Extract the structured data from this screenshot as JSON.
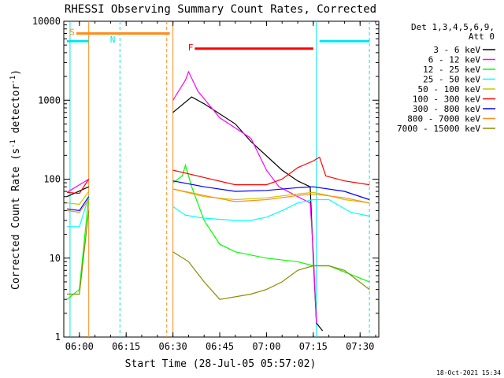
{
  "chart_data": {
    "type": "line",
    "title": "RHESSI Observing Summary Count Rates, Corrected",
    "xlabel": "Start Time (28-Jul-05 05:57:02)",
    "ylabel": "Corrected Count Rate (s⁻¹ detector⁻¹)",
    "ylabel_main": "Corrected Count Rate (s",
    "ylabel_sup1": "-1",
    "ylabel_mid": " detector",
    "ylabel_sup2": "-1",
    "ylabel_end": ")",
    "xlim": [
      "05:55:00",
      "07:36:00"
    ],
    "ylim": [
      1,
      10000
    ],
    "yscale": "log",
    "x_ticks": [
      {
        "t": "06:00",
        "label": "06:00"
      },
      {
        "t": "06:15",
        "label": "06:15"
      },
      {
        "t": "06:30",
        "label": "06:30"
      },
      {
        "t": "06:45",
        "label": "06:45"
      },
      {
        "t": "07:00",
        "label": "07:00"
      },
      {
        "t": "07:15",
        "label": "07:15"
      },
      {
        "t": "07:30",
        "label": "07:30"
      }
    ],
    "y_ticks": [
      {
        "v": 1,
        "label": "1"
      },
      {
        "v": 10,
        "label": "10"
      },
      {
        "v": 100,
        "label": "100"
      },
      {
        "v": 1000,
        "label": "1000"
      },
      {
        "v": 10000,
        "label": "10000"
      }
    ],
    "legend": {
      "position": "right",
      "header": [
        "Det 1,3,4,5,6,9,",
        "Att 0"
      ]
    },
    "series": [
      {
        "name": "3 - 6 keV",
        "color": "#000000",
        "gaps": [
          [
            "06:03",
            "06:30"
          ]
        ],
        "points": [
          [
            "05:56",
            60
          ],
          [
            "06:03",
            80
          ],
          [
            "06:30",
            700
          ],
          [
            "06:36",
            1100
          ],
          [
            "06:40",
            900
          ],
          [
            "06:50",
            500
          ],
          [
            "06:55",
            300
          ],
          [
            "07:05",
            130
          ],
          [
            "07:10",
            95
          ],
          [
            "07:14",
            80
          ],
          [
            "07:15",
            10
          ],
          [
            "07:16",
            1.5
          ],
          [
            "07:18",
            1.2
          ]
        ]
      },
      {
        "name": "6 - 12 keV",
        "color": "#ff00ff",
        "gaps": [
          [
            "06:03",
            "06:30"
          ]
        ],
        "points": [
          [
            "05:56",
            68
          ],
          [
            "06:03",
            100
          ],
          [
            "06:30",
            1000
          ],
          [
            "06:34",
            1800
          ],
          [
            "06:35",
            2300
          ],
          [
            "06:38",
            1300
          ],
          [
            "06:45",
            600
          ],
          [
            "06:55",
            330
          ],
          [
            "07:00",
            130
          ],
          [
            "07:04",
            80
          ],
          [
            "07:10",
            60
          ],
          [
            "07:14",
            50
          ],
          [
            "07:15",
            12
          ],
          [
            "07:16",
            1.5
          ]
        ]
      },
      {
        "name": "12 - 25 keV",
        "color": "#00ff00",
        "gaps": [
          [
            "06:03",
            "06:30"
          ]
        ],
        "points": [
          [
            "05:56",
            3
          ],
          [
            "06:00",
            4
          ],
          [
            "06:03",
            60
          ],
          [
            "06:30",
            90
          ],
          [
            "06:33",
            110
          ],
          [
            "06:34",
            150
          ],
          [
            "06:36",
            80
          ],
          [
            "06:40",
            30
          ],
          [
            "06:45",
            15
          ],
          [
            "06:50",
            12
          ],
          [
            "07:00",
            10
          ],
          [
            "07:10",
            9
          ],
          [
            "07:15",
            8
          ],
          [
            "07:20",
            8
          ],
          [
            "07:33",
            5
          ]
        ]
      },
      {
        "name": "25 - 50 keV",
        "color": "#00ffff",
        "gaps": [
          [
            "06:03",
            "06:30"
          ]
        ],
        "points": [
          [
            "05:56",
            25
          ],
          [
            "06:00",
            25
          ],
          [
            "06:03",
            60
          ],
          [
            "06:30",
            45
          ],
          [
            "06:34",
            35
          ],
          [
            "06:40",
            32
          ],
          [
            "06:50",
            30
          ],
          [
            "06:55",
            30
          ],
          [
            "07:00",
            33
          ],
          [
            "07:05",
            40
          ],
          [
            "07:10",
            50
          ],
          [
            "07:15",
            55
          ],
          [
            "07:20",
            55
          ],
          [
            "07:27",
            38
          ],
          [
            "07:33",
            34
          ]
        ]
      },
      {
        "name": "50 - 100 keV",
        "color": "#c8c800",
        "gaps": [
          [
            "06:03",
            "06:30"
          ]
        ],
        "points": [
          [
            "05:56",
            50
          ],
          [
            "06:00",
            48
          ],
          [
            "06:03",
            70
          ],
          [
            "06:30",
            75
          ],
          [
            "06:40",
            60
          ],
          [
            "06:50",
            55
          ],
          [
            "07:00",
            58
          ],
          [
            "07:10",
            65
          ],
          [
            "07:15",
            68
          ],
          [
            "07:20",
            62
          ],
          [
            "07:25",
            55
          ],
          [
            "07:33",
            50
          ]
        ]
      },
      {
        "name": "100 - 300 keV",
        "color": "#ff0000",
        "gaps": [
          [
            "06:03",
            "06:30"
          ]
        ],
        "points": [
          [
            "05:56",
            68
          ],
          [
            "06:00",
            66
          ],
          [
            "06:03",
            100
          ],
          [
            "06:30",
            130
          ],
          [
            "06:40",
            105
          ],
          [
            "06:50",
            85
          ],
          [
            "07:00",
            85
          ],
          [
            "07:05",
            100
          ],
          [
            "07:10",
            140
          ],
          [
            "07:15",
            170
          ],
          [
            "07:17",
            190
          ],
          [
            "07:19",
            110
          ],
          [
            "07:25",
            95
          ],
          [
            "07:33",
            85
          ]
        ]
      },
      {
        "name": "300 - 800 keV",
        "color": "#0000ff",
        "gaps": [
          [
            "06:03",
            "06:30"
          ]
        ],
        "points": [
          [
            "05:56",
            42
          ],
          [
            "06:00",
            40
          ],
          [
            "06:03",
            60
          ],
          [
            "06:30",
            95
          ],
          [
            "06:40",
            80
          ],
          [
            "06:50",
            70
          ],
          [
            "07:00",
            72
          ],
          [
            "07:10",
            78
          ],
          [
            "07:15",
            80
          ],
          [
            "07:25",
            70
          ],
          [
            "07:33",
            55
          ]
        ]
      },
      {
        "name": "800 - 7000 keV",
        "color": "#ff8c1a",
        "gaps": [
          [
            "06:03",
            "06:30"
          ]
        ],
        "points": [
          [
            "05:56",
            40
          ],
          [
            "06:00",
            38
          ],
          [
            "06:03",
            55
          ],
          [
            "06:30",
            75
          ],
          [
            "06:40",
            62
          ],
          [
            "06:50",
            52
          ],
          [
            "07:00",
            55
          ],
          [
            "07:10",
            62
          ],
          [
            "07:15",
            65
          ],
          [
            "07:25",
            58
          ],
          [
            "07:33",
            50
          ]
        ]
      },
      {
        "name": "7000 - 15000 keV",
        "color": "#8c8c00",
        "gaps": [
          [
            "06:03",
            "06:30"
          ]
        ],
        "points": [
          [
            "05:56",
            3.5
          ],
          [
            "06:00",
            3.5
          ],
          [
            "06:03",
            40
          ],
          [
            "06:30",
            12
          ],
          [
            "06:35",
            9
          ],
          [
            "06:40",
            5
          ],
          [
            "06:45",
            3
          ],
          [
            "06:55",
            3.5
          ],
          [
            "07:00",
            4
          ],
          [
            "07:05",
            5
          ],
          [
            "07:10",
            7
          ],
          [
            "07:15",
            8
          ],
          [
            "07:20",
            8
          ],
          [
            "07:25",
            7
          ],
          [
            "07:33",
            4
          ]
        ]
      }
    ],
    "bars": [
      {
        "letter": "S",
        "color": "#ff8c1a",
        "y": 7000,
        "start": "05:59",
        "end": "06:29"
      },
      {
        "letter": "N",
        "color": "#00e5ee",
        "y": 5600,
        "start": "06:12",
        "end": "06:12"
      },
      {
        "letter": "",
        "color": "#00e5ee",
        "y": 5600,
        "start": "05:56",
        "end": "06:03"
      },
      {
        "letter": "F",
        "color": "#ff0000",
        "y": 4500,
        "start": "06:37",
        "end": "07:15"
      },
      {
        "letter": "",
        "color": "#00e5ee",
        "y": 5600,
        "start": "07:17",
        "end": "07:33"
      }
    ],
    "vlines": [
      {
        "t": "05:57",
        "color": "#00e5ee",
        "dash": false
      },
      {
        "t": "06:03",
        "color": "#ff8c1a",
        "dash": false
      },
      {
        "t": "06:13",
        "color": "#00e5ee",
        "dash": true
      },
      {
        "t": "06:28",
        "color": "#ff8c1a",
        "dash": true
      },
      {
        "t": "06:30",
        "color": "#ff8c1a",
        "dash": false
      },
      {
        "t": "07:16",
        "color": "#00e5ee",
        "dash": false
      },
      {
        "t": "07:33",
        "color": "#00e5ee",
        "dash": true
      }
    ],
    "footer_date": "18-Oct-2021 15:34"
  }
}
